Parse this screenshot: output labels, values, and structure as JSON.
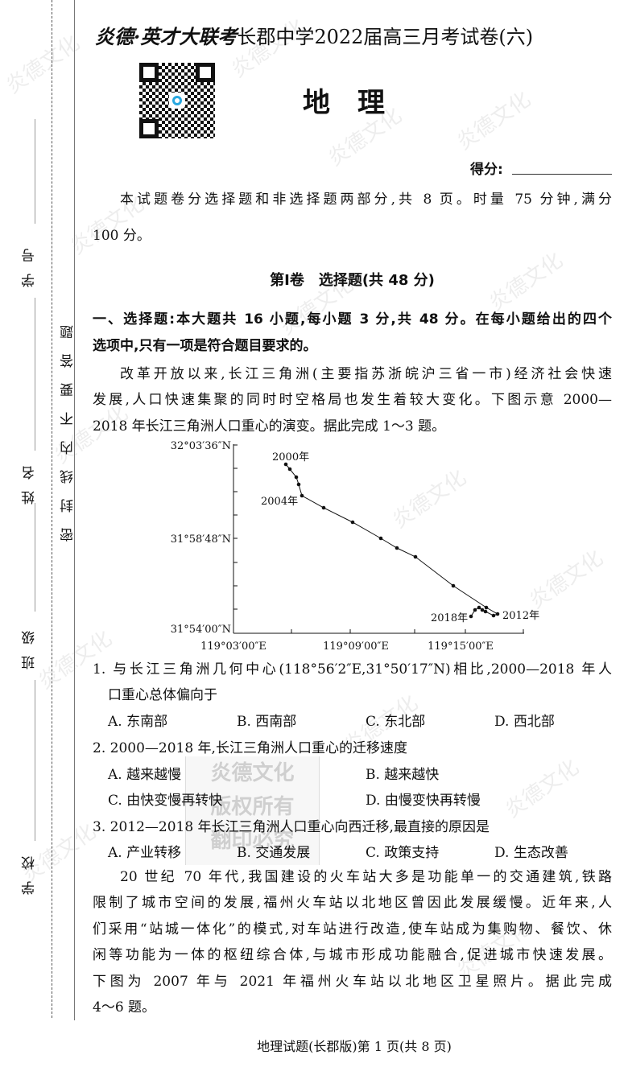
{
  "header": {
    "brand": "炎德·英才大联考",
    "title": "长郡中学2022届高三月考试卷(六)",
    "subject": "地　理",
    "score_label": "得分:"
  },
  "binding_margin": {
    "fields": [
      "学号",
      "姓名",
      "班级",
      "学校"
    ],
    "seal_notice": "密封线内不要答题"
  },
  "intro": [
    "本试题卷分选择题和非选择题两部分,共 8 页。时量 75 分钟,满分",
    "100 分。"
  ],
  "section_title": "第Ⅰ卷　选择题(共 48 分)",
  "instruction": [
    "一、选择题:本大题共 16 小题,每小题 3 分,共 48 分。在每小题给出的四个",
    "选项中,只有一项是符合题目要求的。"
  ],
  "passage1": [
    "改革开放以来,长江三角洲(主要指苏浙皖沪三省一市)经济社会快速",
    "发展,人口快速集聚的同时时空格局也发生着较大变化。下图示意 2000—",
    "2018 年长江三角洲人口重心的演变。据此完成 1～3 题。"
  ],
  "figure": {
    "y_ticks": [
      "32°03′36″N",
      "31°58′48″N",
      "31°54′00″N"
    ],
    "x_ticks": [
      "119°03′00″E",
      "119°09′00″E",
      "119°15′00″E"
    ],
    "labels": [
      "2000年",
      "2004年",
      "2012年",
      "2018年"
    ]
  },
  "questions": [
    {
      "stem": [
        "1. 与长江三角洲几何中心(118°56′2″E,31°50′17″N)相比,2000—2018 年人",
        "口重心总体偏向于"
      ],
      "options": [
        "A. 东南部",
        "B. 西南部",
        "C. 东北部",
        "D. 西北部"
      ]
    },
    {
      "stem": [
        "2. 2000—2018 年,长江三角洲人口重心的迁移速度"
      ],
      "options": [
        "A. 越来越慢",
        "B. 越来越快",
        "C. 由快变慢再转快",
        "D. 由慢变快再转慢"
      ]
    },
    {
      "stem": [
        "3. 2012—2018 年长江三角洲人口重心向西迁移,最直接的原因是"
      ],
      "options": [
        "A. 产业转移",
        "B. 交通发展",
        "C. 政策支持",
        "D. 生态改善"
      ]
    }
  ],
  "passage2": [
    "20 世纪 70 年代,我国建设的火车站大多是功能单一的交通建筑,铁路",
    "限制了城市空间的发展,福州火车站以北地区曾因此发展缓慢。近年来,人",
    "们采用“站城一体化”的模式,对车站进行改造,使车站成为集购物、餐饮、休",
    "闲等功能为一体的枢纽综合体,与城市形成功能融合,促进城市快速发展。",
    "下图为 2007 年与 2021 年福州火车站以北地区卫星照片。据此完成",
    "4～6 题。"
  ],
  "footer": "地理试题(长郡版)第 1 页(共 8 页)",
  "watermark": "炎德文化",
  "stamp": [
    "炎德文化",
    "版权所有",
    "翻印必究"
  ],
  "qr_accent": "#29a8e0"
}
